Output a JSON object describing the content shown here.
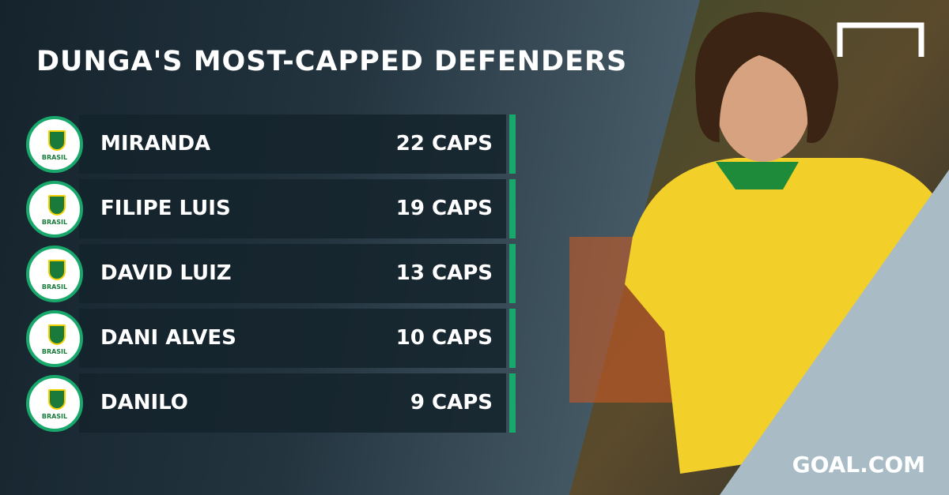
{
  "header": {
    "title": "DUNGA'S MOST-CAPPED DEFENDERS"
  },
  "badge_label": "BRASIL",
  "rows": [
    {
      "name": "MIRANDA",
      "caps": "22 CAPS"
    },
    {
      "name": "FILIPE LUIS",
      "caps": "19 CAPS"
    },
    {
      "name": "DAVID LUIZ",
      "caps": "13 CAPS"
    },
    {
      "name": "DANI ALVES",
      "caps": "10 CAPS"
    },
    {
      "name": "DANILO",
      "caps": "9 CAPS"
    }
  ],
  "brand": "GOAL.COM"
}
